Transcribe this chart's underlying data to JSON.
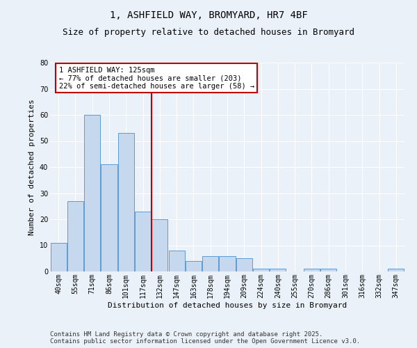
{
  "title": "1, ASHFIELD WAY, BROMYARD, HR7 4BF",
  "subtitle": "Size of property relative to detached houses in Bromyard",
  "xlabel": "Distribution of detached houses by size in Bromyard",
  "ylabel": "Number of detached properties",
  "categories": [
    "40sqm",
    "55sqm",
    "71sqm",
    "86sqm",
    "101sqm",
    "117sqm",
    "132sqm",
    "147sqm",
    "163sqm",
    "178sqm",
    "194sqm",
    "209sqm",
    "224sqm",
    "240sqm",
    "255sqm",
    "270sqm",
    "286sqm",
    "301sqm",
    "316sqm",
    "332sqm",
    "347sqm"
  ],
  "values": [
    11,
    27,
    60,
    41,
    53,
    23,
    20,
    8,
    4,
    6,
    6,
    5,
    1,
    1,
    0,
    1,
    1,
    0,
    0,
    0,
    1
  ],
  "bar_color": "#c5d8ed",
  "bar_edge_color": "#5b9bd5",
  "vline_x_index": 5.5,
  "vline_color": "#c00000",
  "ylim": [
    0,
    80
  ],
  "yticks": [
    0,
    10,
    20,
    30,
    40,
    50,
    60,
    70,
    80
  ],
  "annotation_text": "1 ASHFIELD WAY: 125sqm\n← 77% of detached houses are smaller (203)\n22% of semi-detached houses are larger (58) →",
  "annotation_box_color": "#ffffff",
  "annotation_box_edge_color": "#c00000",
  "footer_line1": "Contains HM Land Registry data © Crown copyright and database right 2025.",
  "footer_line2": "Contains public sector information licensed under the Open Government Licence v3.0.",
  "background_color": "#eaf1f8",
  "plot_bg_color": "#eaf1f8",
  "title_fontsize": 10,
  "subtitle_fontsize": 9,
  "axis_label_fontsize": 8,
  "tick_fontsize": 7,
  "annotation_fontsize": 7.5,
  "footer_fontsize": 6.5
}
